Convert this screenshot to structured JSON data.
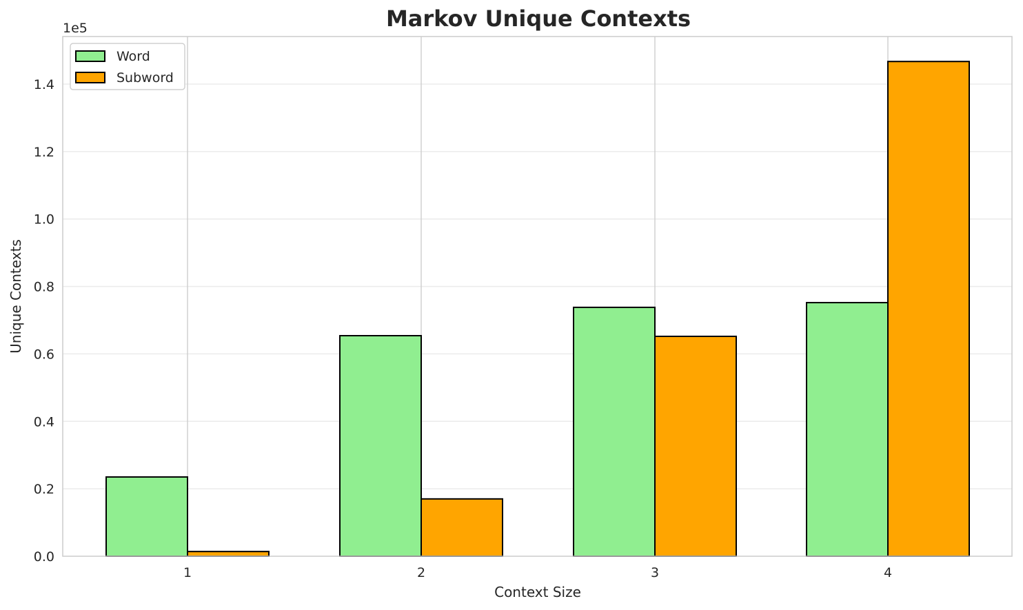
{
  "chart_data": {
    "type": "bar",
    "title": "Markov Unique Contexts",
    "xlabel": "Context Size",
    "ylabel": "Unique Contexts",
    "y_offset_label": "1e5",
    "categories": [
      "1",
      "2",
      "3",
      "4"
    ],
    "series": [
      {
        "name": "Word",
        "color": "#90ee90",
        "values": [
          23500,
          65400,
          73800,
          75200
        ]
      },
      {
        "name": "Subword",
        "color": "#ffa500",
        "values": [
          1400,
          17000,
          65200,
          146700
        ]
      }
    ],
    "yticks": [
      0,
      20000,
      40000,
      60000,
      80000,
      100000,
      120000,
      140000
    ],
    "ytick_labels": [
      "0.0",
      "0.2",
      "0.4",
      "0.6",
      "0.8",
      "1.0",
      "1.2",
      "1.4"
    ],
    "ylim": [
      0,
      154000
    ],
    "grid": true,
    "legend_position": "upper left"
  }
}
